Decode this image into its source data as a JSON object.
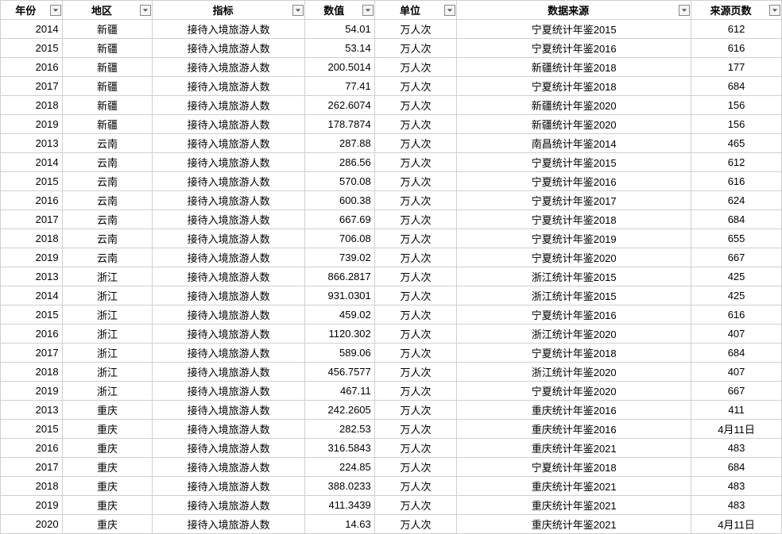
{
  "table": {
    "columns": [
      {
        "key": "year",
        "label": "年份",
        "class": "col-year"
      },
      {
        "key": "region",
        "label": "地区",
        "class": "col-region"
      },
      {
        "key": "indicator",
        "label": "指标",
        "class": "col-indicator"
      },
      {
        "key": "value",
        "label": "数值",
        "class": "col-value"
      },
      {
        "key": "unit",
        "label": "单位",
        "class": "col-unit"
      },
      {
        "key": "source",
        "label": "数据来源",
        "class": "col-source"
      },
      {
        "key": "page",
        "label": "来源页数",
        "class": "col-page"
      }
    ],
    "rows": [
      {
        "year": "2014",
        "region": "新疆",
        "indicator": "接待入境旅游人数",
        "value": "54.01",
        "unit": "万人次",
        "source": "宁夏统计年鉴2015",
        "page": "612"
      },
      {
        "year": "2015",
        "region": "新疆",
        "indicator": "接待入境旅游人数",
        "value": "53.14",
        "unit": "万人次",
        "source": "宁夏统计年鉴2016",
        "page": "616"
      },
      {
        "year": "2016",
        "region": "新疆",
        "indicator": "接待入境旅游人数",
        "value": "200.5014",
        "unit": "万人次",
        "source": "新疆统计年鉴2018",
        "page": "177"
      },
      {
        "year": "2017",
        "region": "新疆",
        "indicator": "接待入境旅游人数",
        "value": "77.41",
        "unit": "万人次",
        "source": "宁夏统计年鉴2018",
        "page": "684"
      },
      {
        "year": "2018",
        "region": "新疆",
        "indicator": "接待入境旅游人数",
        "value": "262.6074",
        "unit": "万人次",
        "source": "新疆统计年鉴2020",
        "page": "156"
      },
      {
        "year": "2019",
        "region": "新疆",
        "indicator": "接待入境旅游人数",
        "value": "178.7874",
        "unit": "万人次",
        "source": "新疆统计年鉴2020",
        "page": "156"
      },
      {
        "year": "2013",
        "region": "云南",
        "indicator": "接待入境旅游人数",
        "value": "287.88",
        "unit": "万人次",
        "source": "南昌统计年鉴2014",
        "page": "465"
      },
      {
        "year": "2014",
        "region": "云南",
        "indicator": "接待入境旅游人数",
        "value": "286.56",
        "unit": "万人次",
        "source": "宁夏统计年鉴2015",
        "page": "612"
      },
      {
        "year": "2015",
        "region": "云南",
        "indicator": "接待入境旅游人数",
        "value": "570.08",
        "unit": "万人次",
        "source": "宁夏统计年鉴2016",
        "page": "616"
      },
      {
        "year": "2016",
        "region": "云南",
        "indicator": "接待入境旅游人数",
        "value": "600.38",
        "unit": "万人次",
        "source": "宁夏统计年鉴2017",
        "page": "624"
      },
      {
        "year": "2017",
        "region": "云南",
        "indicator": "接待入境旅游人数",
        "value": "667.69",
        "unit": "万人次",
        "source": "宁夏统计年鉴2018",
        "page": "684"
      },
      {
        "year": "2018",
        "region": "云南",
        "indicator": "接待入境旅游人数",
        "value": "706.08",
        "unit": "万人次",
        "source": "宁夏统计年鉴2019",
        "page": "655"
      },
      {
        "year": "2019",
        "region": "云南",
        "indicator": "接待入境旅游人数",
        "value": "739.02",
        "unit": "万人次",
        "source": "宁夏统计年鉴2020",
        "page": "667"
      },
      {
        "year": "2013",
        "region": "浙江",
        "indicator": "接待入境旅游人数",
        "value": "866.2817",
        "unit": "万人次",
        "source": "浙江统计年鉴2015",
        "page": "425"
      },
      {
        "year": "2014",
        "region": "浙江",
        "indicator": "接待入境旅游人数",
        "value": "931.0301",
        "unit": "万人次",
        "source": "浙江统计年鉴2015",
        "page": "425"
      },
      {
        "year": "2015",
        "region": "浙江",
        "indicator": "接待入境旅游人数",
        "value": "459.02",
        "unit": "万人次",
        "source": "宁夏统计年鉴2016",
        "page": "616"
      },
      {
        "year": "2016",
        "region": "浙江",
        "indicator": "接待入境旅游人数",
        "value": "1120.302",
        "unit": "万人次",
        "source": "浙江统计年鉴2020",
        "page": "407"
      },
      {
        "year": "2017",
        "region": "浙江",
        "indicator": "接待入境旅游人数",
        "value": "589.06",
        "unit": "万人次",
        "source": "宁夏统计年鉴2018",
        "page": "684"
      },
      {
        "year": "2018",
        "region": "浙江",
        "indicator": "接待入境旅游人数",
        "value": "456.7577",
        "unit": "万人次",
        "source": "浙江统计年鉴2020",
        "page": "407"
      },
      {
        "year": "2019",
        "region": "浙江",
        "indicator": "接待入境旅游人数",
        "value": "467.11",
        "unit": "万人次",
        "source": "宁夏统计年鉴2020",
        "page": "667"
      },
      {
        "year": "2013",
        "region": "重庆",
        "indicator": "接待入境旅游人数",
        "value": "242.2605",
        "unit": "万人次",
        "source": "重庆统计年鉴2016",
        "page": "411"
      },
      {
        "year": "2015",
        "region": "重庆",
        "indicator": "接待入境旅游人数",
        "value": "282.53",
        "unit": "万人次",
        "source": "重庆统计年鉴2016",
        "page": "4月11日"
      },
      {
        "year": "2016",
        "region": "重庆",
        "indicator": "接待入境旅游人数",
        "value": "316.5843",
        "unit": "万人次",
        "source": "重庆统计年鉴2021",
        "page": "483"
      },
      {
        "year": "2017",
        "region": "重庆",
        "indicator": "接待入境旅游人数",
        "value": "224.85",
        "unit": "万人次",
        "source": "宁夏统计年鉴2018",
        "page": "684"
      },
      {
        "year": "2018",
        "region": "重庆",
        "indicator": "接待入境旅游人数",
        "value": "388.0233",
        "unit": "万人次",
        "source": "重庆统计年鉴2021",
        "page": "483"
      },
      {
        "year": "2019",
        "region": "重庆",
        "indicator": "接待入境旅游人数",
        "value": "411.3439",
        "unit": "万人次",
        "source": "重庆统计年鉴2021",
        "page": "483"
      },
      {
        "year": "2020",
        "region": "重庆",
        "indicator": "接待入境旅游人数",
        "value": "14.63",
        "unit": "万人次",
        "source": "重庆统计年鉴2021",
        "page": "4月11日"
      }
    ]
  }
}
